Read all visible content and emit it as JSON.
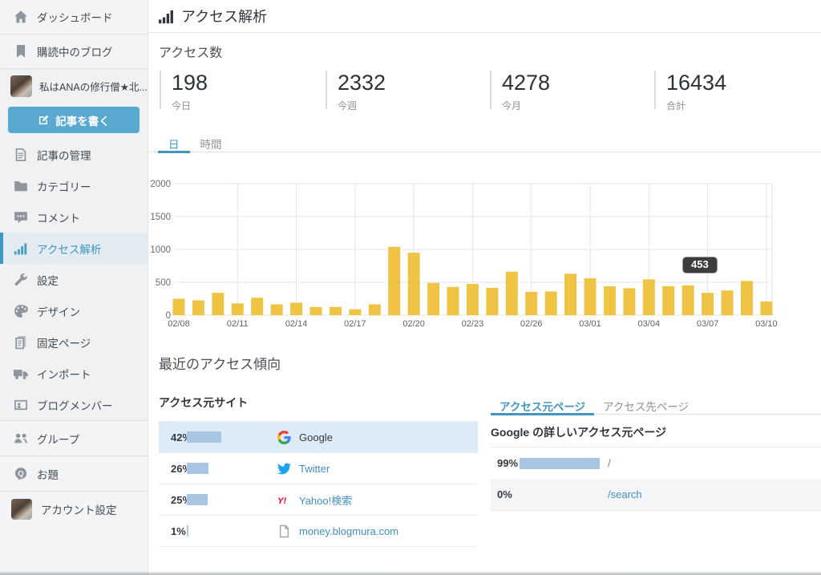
{
  "header": {
    "title": "アクセス解析",
    "icon": "chart-bars-icon"
  },
  "sidebar": {
    "blog_name": "私はANAの修行僧★北...",
    "write_button": {
      "label": "記事を書く",
      "icon": "pencil-square-icon"
    },
    "items_top": [
      {
        "id": "dashboard",
        "label": "ダッシュボード",
        "icon": "home-icon"
      },
      {
        "id": "subscriptions",
        "label": "購読中のブログ",
        "icon": "bookmark-icon"
      }
    ],
    "items_blog": [
      {
        "id": "entries",
        "label": "記事の管理",
        "icon": "doc-icon"
      },
      {
        "id": "categories",
        "label": "カテゴリー",
        "icon": "folder-icon"
      },
      {
        "id": "comments",
        "label": "コメント",
        "icon": "comment-icon"
      },
      {
        "id": "access-analytics",
        "label": "アクセス解析",
        "icon": "chart-bars-icon",
        "active": true
      },
      {
        "id": "settings",
        "label": "設定",
        "icon": "wrench-icon"
      },
      {
        "id": "design",
        "label": "デザイン",
        "icon": "palette-icon"
      },
      {
        "id": "fixed-pages",
        "label": "固定ページ",
        "icon": "pages-icon"
      },
      {
        "id": "import",
        "label": "インポート",
        "icon": "truck-icon"
      },
      {
        "id": "blog-members",
        "label": "ブログメンバー",
        "icon": "member-card-icon"
      }
    ],
    "items_bottom": [
      {
        "id": "groups",
        "label": "グループ",
        "icon": "people-icon"
      },
      {
        "id": "odai",
        "label": "お題",
        "icon": "q-icon"
      },
      {
        "id": "account-settings",
        "label": "アカウント設定",
        "icon": "avatar"
      }
    ]
  },
  "stats": {
    "title": "アクセス数",
    "items": [
      {
        "value": "198",
        "label": "今日"
      },
      {
        "value": "2332",
        "label": "今週"
      },
      {
        "value": "4278",
        "label": "今月"
      },
      {
        "value": "16434",
        "label": "合計"
      }
    ]
  },
  "chart_tabs": [
    {
      "label": "日",
      "active": true
    },
    {
      "label": "時間",
      "active": false
    }
  ],
  "chart_data": {
    "type": "bar",
    "x": [
      "02/08",
      "02/09",
      "02/10",
      "02/11",
      "02/12",
      "02/13",
      "02/14",
      "02/15",
      "02/16",
      "02/17",
      "02/18",
      "02/19",
      "02/20",
      "02/21",
      "02/22",
      "02/23",
      "02/24",
      "02/25",
      "02/26",
      "02/27",
      "02/28",
      "03/01",
      "03/02",
      "03/03",
      "03/04",
      "03/05",
      "03/06",
      "03/07",
      "03/08",
      "03/09",
      "03/10"
    ],
    "values": [
      250,
      225,
      340,
      180,
      265,
      165,
      190,
      125,
      125,
      90,
      165,
      1040,
      950,
      490,
      430,
      475,
      415,
      660,
      355,
      360,
      630,
      560,
      440,
      410,
      545,
      440,
      453,
      340,
      375,
      520,
      210
    ],
    "x_tick_labels": [
      "02/08",
      "02/11",
      "02/14",
      "02/17",
      "02/20",
      "02/23",
      "02/26",
      "03/01",
      "03/04",
      "03/07",
      "03/10"
    ],
    "ylim": [
      0,
      2000
    ],
    "yticks": [
      0,
      500,
      1000,
      1500,
      2000
    ],
    "grid": true,
    "bar_color": "#efc344",
    "tooltip": {
      "date": "03/06",
      "value": "453"
    }
  },
  "recent": {
    "title": "最近のアクセス傾向",
    "sources": {
      "title": "アクセス元サイト",
      "rows": [
        {
          "percent": "42%",
          "value": 42,
          "site": "Google",
          "icon": "google-icon",
          "selected": true
        },
        {
          "percent": "26%",
          "value": 26,
          "site": "Twitter",
          "icon": "twitter-icon",
          "selected": false
        },
        {
          "percent": "25%",
          "value": 25,
          "site": "Yahoo!検索",
          "icon": "yahoo-icon",
          "selected": false
        },
        {
          "percent": "1%",
          "value": 1,
          "site": "money.blogmura.com",
          "icon": "doc-plain-icon",
          "selected": false
        }
      ]
    },
    "detail": {
      "tabs": [
        {
          "label": "アクセス元ページ",
          "active": true
        },
        {
          "label": "アクセス先ページ",
          "active": false
        }
      ],
      "heading": "Google の詳しいアクセス元ページ",
      "rows": [
        {
          "percent": "99%",
          "value": 99,
          "path": "/"
        },
        {
          "percent": "0%",
          "value": 0,
          "path": "/search"
        }
      ]
    }
  },
  "colors": {
    "accent_blue": "#4396c0",
    "button_blue": "#58a8cf",
    "bar_yellow": "#efc344",
    "link_blue": "#428fc0",
    "selected_row": "#dcebf6",
    "percent_bar": "#a9c5e4",
    "twitter_blue": "#1da1f2",
    "yahoo_red": "#ff0132",
    "tooltip_bg": "#3d3d3d"
  }
}
